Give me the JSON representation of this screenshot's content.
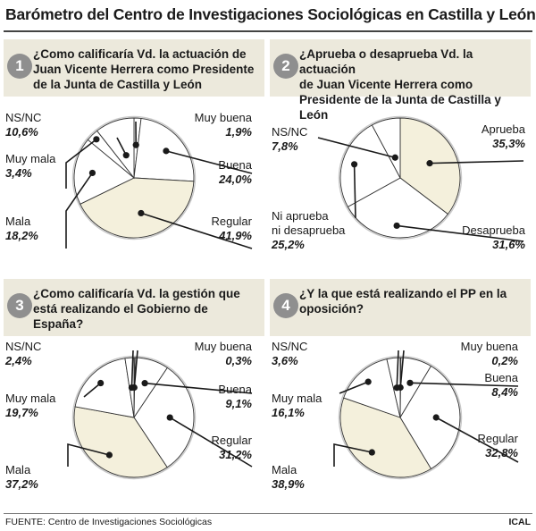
{
  "title": "Barómetro del Centro de Investigaciones Sociológicas en Castilla y León",
  "source": "FUENTE: Centro de Investigaciones Sociológicas",
  "credit": "ICAL",
  "colors": {
    "cream": "#f4f0dc",
    "white": "#ffffff",
    "outline": "#c9c9c9",
    "line": "#1a1a1a",
    "number_badge": "#8f8f8f",
    "question_bar": "#ece9dc"
  },
  "chart_data": [
    {
      "type": "pie",
      "number": "1",
      "question": [
        "¿Como calificaría Vd. la actuación de",
        "Juan Vicente Herrera como Presidente",
        "de la Junta de Castilla y León"
      ],
      "slices": [
        {
          "label": [
            "Muy buena"
          ],
          "value": 1.9,
          "display": "1,9%",
          "fill": "white"
        },
        {
          "label": [
            "Buena"
          ],
          "value": 24.0,
          "display": "24,0%",
          "fill": "white"
        },
        {
          "label": [
            "Regular"
          ],
          "value": 41.9,
          "display": "41,9%",
          "fill": "cream"
        },
        {
          "label": [
            "Mala"
          ],
          "value": 18.2,
          "display": "18,2%",
          "fill": "white"
        },
        {
          "label": [
            "Muy mala"
          ],
          "value": 3.4,
          "display": "3,4%",
          "fill": "white"
        },
        {
          "label": [
            "NS/NC"
          ],
          "value": 10.6,
          "display": "10,6%",
          "fill": "white"
        }
      ]
    },
    {
      "type": "pie",
      "number": "2",
      "question": [
        "¿Aprueba o desaprueba Vd. la actuación",
        "de Juan Vicente Herrera como",
        "Presidente de la Junta de Castilla y León"
      ],
      "slices": [
        {
          "label": [
            "Aprueba"
          ],
          "value": 35.3,
          "display": "35,3%",
          "fill": "cream"
        },
        {
          "label": [
            "Desaprueba"
          ],
          "value": 31.6,
          "display": "31,6%",
          "fill": "white"
        },
        {
          "label": [
            "Ni aprueba",
            "ni desaprueba"
          ],
          "value": 25.2,
          "display": "25,2%",
          "fill": "white"
        },
        {
          "label": [
            "NS/NC"
          ],
          "value": 7.8,
          "display": "7,8%",
          "fill": "white"
        }
      ]
    },
    {
      "type": "pie",
      "number": "3",
      "question": [
        "¿Como calificaría Vd. la gestión que",
        "está realizando el Gobierno de España?"
      ],
      "slices": [
        {
          "label": [
            "Muy buena"
          ],
          "value": 0.3,
          "display": "0,3%",
          "fill": "white"
        },
        {
          "label": [
            "Buena"
          ],
          "value": 9.1,
          "display": "9,1%",
          "fill": "white"
        },
        {
          "label": [
            "Regular"
          ],
          "value": 31.2,
          "display": "31,2%",
          "fill": "white"
        },
        {
          "label": [
            "Mala"
          ],
          "value": 37.2,
          "display": "37,2%",
          "fill": "cream"
        },
        {
          "label": [
            "Muy mala"
          ],
          "value": 19.7,
          "display": "19,7%",
          "fill": "white"
        },
        {
          "label": [
            "NS/NC"
          ],
          "value": 2.4,
          "display": "2,4%",
          "fill": "white"
        }
      ]
    },
    {
      "type": "pie",
      "number": "4",
      "question": [
        "¿Y la que está realizando el PP en la",
        "oposición?"
      ],
      "slices": [
        {
          "label": [
            "Muy buena"
          ],
          "value": 0.2,
          "display": "0,2%",
          "fill": "white"
        },
        {
          "label": [
            "Buena"
          ],
          "value": 8.4,
          "display": "8,4%",
          "fill": "white"
        },
        {
          "label": [
            "Regular"
          ],
          "value": 32.8,
          "display": "32,8%",
          "fill": "white"
        },
        {
          "label": [
            "Mala"
          ],
          "value": 38.9,
          "display": "38,9%",
          "fill": "cream"
        },
        {
          "label": [
            "Muy mala"
          ],
          "value": 16.1,
          "display": "16,1%",
          "fill": "white"
        },
        {
          "label": [
            "NS/NC"
          ],
          "value": 3.6,
          "display": "3,6%",
          "fill": "white"
        }
      ]
    }
  ]
}
